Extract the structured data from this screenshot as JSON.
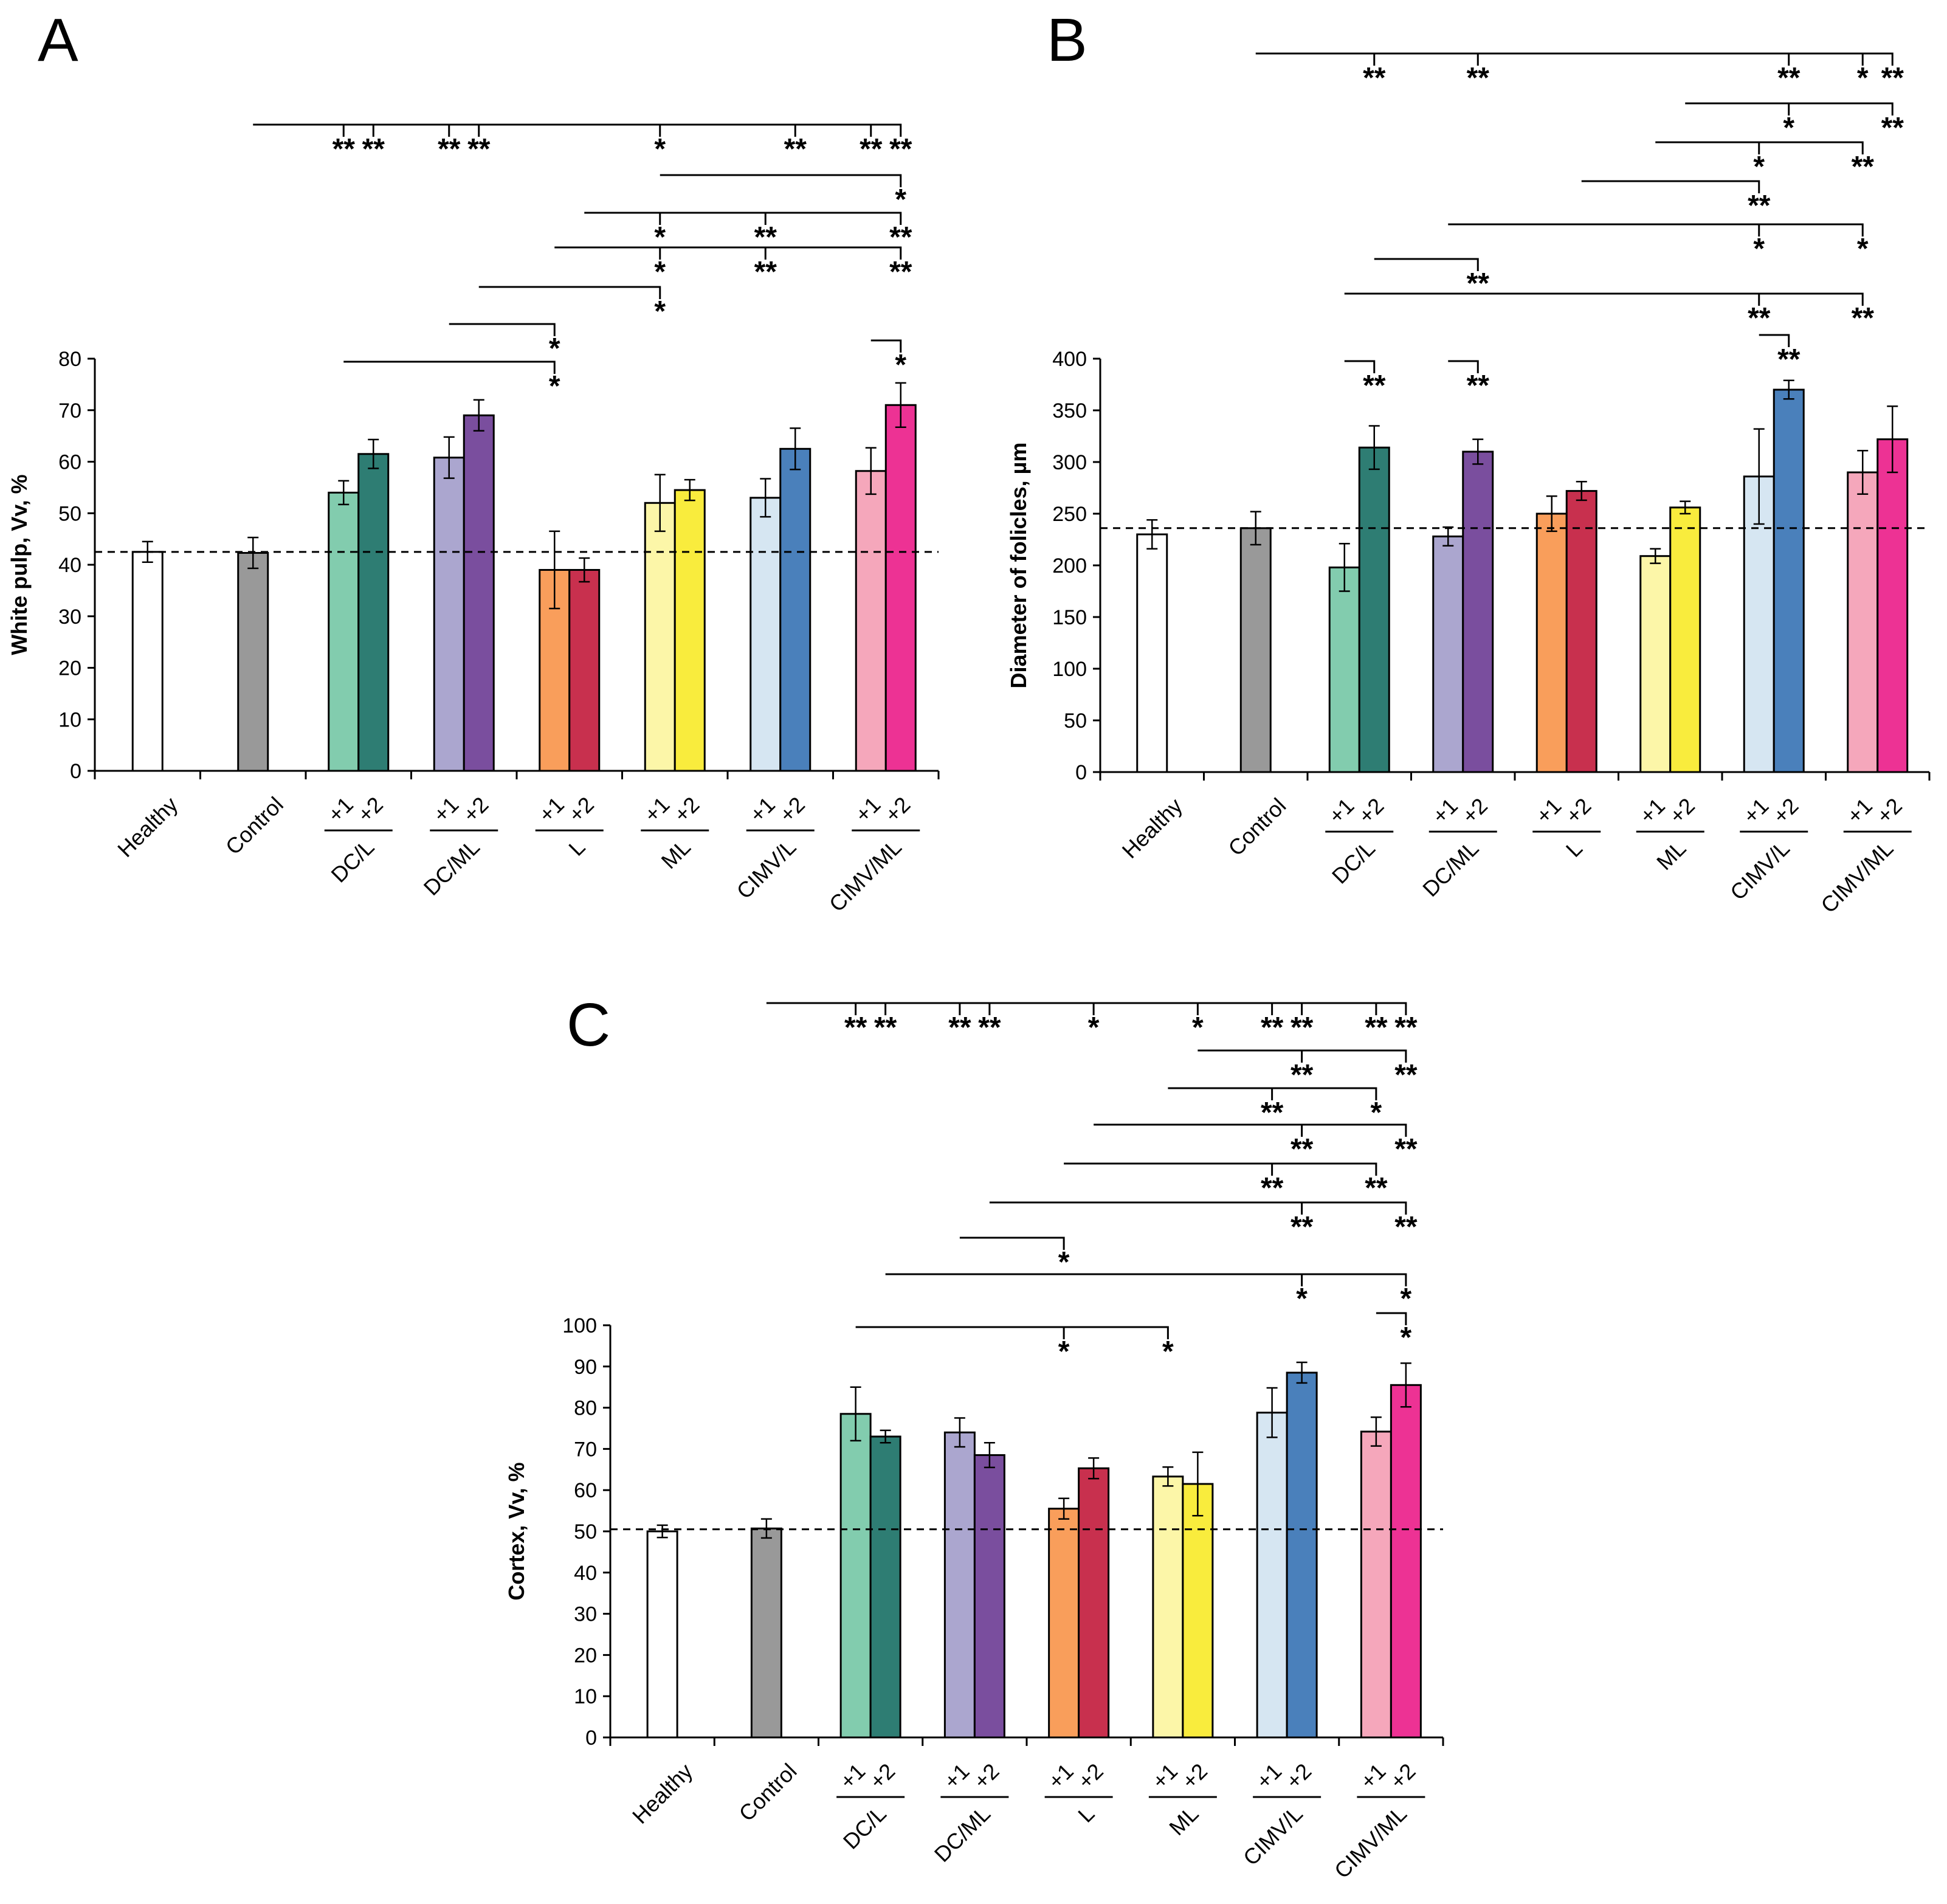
{
  "colors": {
    "Healthy": "#ffffff",
    "Control": "#999999",
    "DC/L": [
      "#82ccae",
      "#2e7d73"
    ],
    "DC/ML": [
      "#aba6cf",
      "#7a4e9e"
    ],
    "L": [
      "#f99e5b",
      "#c8304e"
    ],
    "ML": [
      "#fcf6a8",
      "#f9ec3d"
    ],
    "CIMV/L": [
      "#d6e6f2",
      "#4a80bb"
    ],
    "CIMV/ML": [
      "#f5a7bb",
      "#ed3294"
    ]
  },
  "chart_data": [
    {
      "type": "bar",
      "panel": "A",
      "ylabel": "White pulp, Vv, %",
      "ylim": [
        0,
        80
      ],
      "yticks": [
        0,
        10,
        20,
        30,
        40,
        50,
        60,
        70,
        80
      ],
      "reference_line": 42.5,
      "categories": [
        "Healthy",
        "Control",
        "DC/L",
        "DC/ML",
        "L",
        "ML",
        "CIMV/L",
        "CIMV/ML"
      ],
      "sub_labels": [
        "+1",
        "+2"
      ],
      "bars": [
        {
          "group": "Healthy",
          "value": 42.5,
          "error": 2
        },
        {
          "group": "Control",
          "value": 42.3,
          "error": 3
        },
        {
          "group": "DC/L",
          "sub": "+1",
          "value": 54,
          "error": 2.3
        },
        {
          "group": "DC/L",
          "sub": "+2",
          "value": 61.5,
          "error": 2.8
        },
        {
          "group": "DC/ML",
          "sub": "+1",
          "value": 60.8,
          "error": 4
        },
        {
          "group": "DC/ML",
          "sub": "+2",
          "value": 69,
          "error": 3
        },
        {
          "group": "L",
          "sub": "+1",
          "value": 39,
          "error": 7.5
        },
        {
          "group": "L",
          "sub": "+2",
          "value": 39,
          "error": 2.3
        },
        {
          "group": "ML",
          "sub": "+1",
          "value": 52,
          "error": 5.5
        },
        {
          "group": "ML",
          "sub": "+2",
          "value": 54.5,
          "error": 2
        },
        {
          "group": "CIMV/L",
          "sub": "+1",
          "value": 53,
          "error": 3.7
        },
        {
          "group": "CIMV/L",
          "sub": "+2",
          "value": 62.5,
          "error": 4
        },
        {
          "group": "CIMV/ML",
          "sub": "+1",
          "value": 58.2,
          "error": 4.5
        },
        {
          "group": "CIMV/ML",
          "sub": "+2",
          "value": 71,
          "error": 4.3
        }
      ],
      "brackets": [
        {
          "from": "Control",
          "to": "CIMV/ML+2",
          "marks": [
            {
              "at": "DC/L+1",
              "label": "**"
            },
            {
              "at": "DC/L+2",
              "label": "**"
            },
            {
              "at": "DC/ML+1",
              "label": "**"
            },
            {
              "at": "DC/ML+2",
              "label": "**"
            },
            {
              "at": "ML+1",
              "label": "*"
            },
            {
              "at": "CIMV/L+2",
              "label": "**"
            },
            {
              "at": "CIMV/ML+1",
              "label": "**"
            },
            {
              "at": "CIMV/ML+2",
              "label": "**"
            }
          ]
        },
        {
          "from": "ML+1",
          "to": "CIMV/ML+2",
          "marks": [
            {
              "at": "CIMV/ML+2",
              "label": "*"
            }
          ]
        },
        {
          "from": "L+2",
          "to": "CIMV/ML+2",
          "marks": [
            {
              "at": "ML+1",
              "label": "*"
            },
            {
              "at": "CIMV/L+1",
              "label": "**"
            },
            {
              "at": "CIMV/ML+2",
              "label": "**"
            }
          ]
        },
        {
          "from": "L+1",
          "to": "CIMV/ML+2",
          "marks": [
            {
              "at": "ML+1",
              "label": "*"
            },
            {
              "at": "CIMV/L+1",
              "label": "**"
            },
            {
              "at": "CIMV/ML+2",
              "label": "**"
            }
          ]
        },
        {
          "from": "DC/ML+2",
          "to": "ML+1",
          "marks": [
            {
              "at": "ML+1",
              "label": "*"
            }
          ]
        },
        {
          "from": "DC/ML+1",
          "to": "L+1",
          "marks": [
            {
              "at": "L+1",
              "label": "*"
            }
          ]
        },
        {
          "from": "DC/L+1",
          "to": "L+1",
          "marks": [
            {
              "at": "L+1",
              "label": "*"
            }
          ]
        },
        {
          "from": "CIMV/ML+1",
          "to": "CIMV/ML+2",
          "marks": [
            {
              "at": "CIMV/ML+2",
              "label": "*"
            }
          ]
        }
      ]
    },
    {
      "type": "bar",
      "panel": "B",
      "ylabel": "Diameter of folicles, µm",
      "ylim": [
        0,
        400
      ],
      "yticks": [
        0,
        50,
        100,
        150,
        200,
        250,
        300,
        350,
        400
      ],
      "reference_line": 236,
      "categories": [
        "Healthy",
        "Control",
        "DC/L",
        "DC/ML",
        "L",
        "ML",
        "CIMV/L",
        "CIMV/ML"
      ],
      "sub_labels": [
        "+1",
        "+2"
      ],
      "bars": [
        {
          "group": "Healthy",
          "value": 230,
          "error": 14
        },
        {
          "group": "Control",
          "value": 236,
          "error": 16
        },
        {
          "group": "DC/L",
          "sub": "+1",
          "value": 198,
          "error": 23
        },
        {
          "group": "DC/L",
          "sub": "+2",
          "value": 314,
          "error": 21
        },
        {
          "group": "DC/ML",
          "sub": "+1",
          "value": 228,
          "error": 9
        },
        {
          "group": "DC/ML",
          "sub": "+2",
          "value": 310,
          "error": 12
        },
        {
          "group": "L",
          "sub": "+1",
          "value": 250,
          "error": 17
        },
        {
          "group": "L",
          "sub": "+2",
          "value": 272,
          "error": 9
        },
        {
          "group": "ML",
          "sub": "+1",
          "value": 209,
          "error": 7
        },
        {
          "group": "ML",
          "sub": "+2",
          "value": 256,
          "error": 6
        },
        {
          "group": "CIMV/L",
          "sub": "+1",
          "value": 286,
          "error": 46
        },
        {
          "group": "CIMV/L",
          "sub": "+2",
          "value": 370,
          "error": 9
        },
        {
          "group": "CIMV/ML",
          "sub": "+1",
          "value": 290,
          "error": 21
        },
        {
          "group": "CIMV/ML",
          "sub": "+2",
          "value": 322,
          "error": 32
        }
      ],
      "brackets": [
        {
          "from": "Control",
          "to": "CIMV/ML+2",
          "marks": [
            {
              "at": "DC/L+2",
              "label": "**"
            },
            {
              "at": "DC/ML+2",
              "label": "**"
            },
            {
              "at": "CIMV/L+2",
              "label": "**"
            },
            {
              "at": "CIMV/ML+1",
              "label": "*"
            },
            {
              "at": "CIMV/ML+2",
              "label": "**"
            }
          ]
        },
        {
          "from": "ML+2",
          "to": "CIMV/ML+2",
          "marks": [
            {
              "at": "CIMV/L+2",
              "label": "*"
            },
            {
              "at": "CIMV/ML+2",
              "label": "**"
            }
          ]
        },
        {
          "from": "ML+1",
          "to": "CIMV/ML+1",
          "marks": [
            {
              "at": "CIMV/L+1",
              "label": "*"
            },
            {
              "at": "CIMV/ML+1",
              "label": "**"
            }
          ]
        },
        {
          "from": "L+2",
          "to": "CIMV/L+1",
          "marks": [
            {
              "at": "CIMV/L+1",
              "label": "**"
            }
          ]
        },
        {
          "from": "DC/ML+1",
          "to": "CIMV/ML+1",
          "marks": [
            {
              "at": "CIMV/L+1",
              "label": "*"
            },
            {
              "at": "CIMV/ML+1",
              "label": "*"
            }
          ]
        },
        {
          "from": "DC/L+2",
          "to": "DC/ML+2",
          "marks": [
            {
              "at": "DC/ML+2",
              "label": "**"
            }
          ]
        },
        {
          "from": "DC/L+1",
          "to": "CIMV/ML+1",
          "marks": [
            {
              "at": "CIMV/L+1",
              "label": "**"
            },
            {
              "at": "CIMV/ML+1",
              "label": "**"
            }
          ]
        },
        {
          "from": "CIMV/L+1",
          "to": "CIMV/L+2",
          "marks": [
            {
              "at": "CIMV/L+2",
              "label": "**"
            }
          ]
        },
        {
          "from": "DC/L+1",
          "to": "DC/L+2",
          "marks": [
            {
              "at": "DC/L+2",
              "label": "**"
            }
          ]
        },
        {
          "from": "DC/ML+1",
          "to": "DC/ML+2",
          "marks": [
            {
              "at": "DC/ML+2",
              "label": "**"
            }
          ]
        }
      ]
    },
    {
      "type": "bar",
      "panel": "C",
      "ylabel": "Cortex, Vv, %",
      "ylim": [
        0,
        100
      ],
      "yticks": [
        0,
        10,
        20,
        30,
        40,
        50,
        60,
        70,
        80,
        90,
        100
      ],
      "reference_line": 50.5,
      "categories": [
        "Healthy",
        "Control",
        "DC/L",
        "DC/ML",
        "L",
        "ML",
        "CIMV/L",
        "CIMV/ML"
      ],
      "sub_labels": [
        "+1",
        "+2"
      ],
      "bars": [
        {
          "group": "Healthy",
          "value": 50,
          "error": 1.5
        },
        {
          "group": "Control",
          "value": 50.7,
          "error": 2.3
        },
        {
          "group": "DC/L",
          "sub": "+1",
          "value": 78.5,
          "error": 6.5
        },
        {
          "group": "DC/L",
          "sub": "+2",
          "value": 73,
          "error": 1.5
        },
        {
          "group": "DC/ML",
          "sub": "+1",
          "value": 74,
          "error": 3.5
        },
        {
          "group": "DC/ML",
          "sub": "+2",
          "value": 68.5,
          "error": 3
        },
        {
          "group": "L",
          "sub": "+1",
          "value": 55.5,
          "error": 2.5
        },
        {
          "group": "L",
          "sub": "+2",
          "value": 65.3,
          "error": 2.5
        },
        {
          "group": "ML",
          "sub": "+1",
          "value": 63.3,
          "error": 2.3
        },
        {
          "group": "ML",
          "sub": "+2",
          "value": 61.5,
          "error": 7.7
        },
        {
          "group": "CIMV/L",
          "sub": "+1",
          "value": 78.8,
          "error": 6
        },
        {
          "group": "CIMV/L",
          "sub": "+2",
          "value": 88.5,
          "error": 2.5
        },
        {
          "group": "CIMV/ML",
          "sub": "+1",
          "value": 74.2,
          "error": 3.5
        },
        {
          "group": "CIMV/ML",
          "sub": "+2",
          "value": 85.5,
          "error": 5.3
        }
      ],
      "brackets": [
        {
          "from": "Control",
          "to": "CIMV/ML+2",
          "marks": [
            {
              "at": "DC/L+1",
              "label": "**"
            },
            {
              "at": "DC/L+2",
              "label": "**"
            },
            {
              "at": "DC/ML+1",
              "label": "**"
            },
            {
              "at": "DC/ML+2",
              "label": "**"
            },
            {
              "at": "L+2",
              "label": "*"
            },
            {
              "at": "ML+2",
              "label": "*"
            },
            {
              "at": "CIMV/L+1",
              "label": "**"
            },
            {
              "at": "CIMV/L+2",
              "label": "**"
            },
            {
              "at": "CIMV/ML+1",
              "label": "**"
            },
            {
              "at": "CIMV/ML+2",
              "label": "**"
            }
          ]
        },
        {
          "from": "ML+2",
          "to": "CIMV/ML+2",
          "marks": [
            {
              "at": "CIMV/L+2",
              "label": "**"
            },
            {
              "at": "CIMV/ML+2",
              "label": "**"
            }
          ]
        },
        {
          "from": "ML+1",
          "to": "CIMV/ML+1",
          "marks": [
            {
              "at": "CIMV/L+1",
              "label": "**"
            },
            {
              "at": "CIMV/ML+1",
              "label": "*"
            }
          ]
        },
        {
          "from": "L+2",
          "to": "CIMV/ML+2",
          "marks": [
            {
              "at": "CIMV/L+2",
              "label": "**"
            },
            {
              "at": "CIMV/ML+2",
              "label": "**"
            }
          ]
        },
        {
          "from": "L+1",
          "to": "CIMV/ML+1",
          "marks": [
            {
              "at": "CIMV/L+1",
              "label": "**"
            },
            {
              "at": "CIMV/ML+1",
              "label": "**"
            }
          ]
        },
        {
          "from": "DC/ML+2",
          "to": "CIMV/ML+2",
          "marks": [
            {
              "at": "CIMV/L+2",
              "label": "**"
            },
            {
              "at": "CIMV/ML+2",
              "label": "**"
            }
          ]
        },
        {
          "from": "DC/ML+1",
          "to": "L+1",
          "marks": [
            {
              "at": "L+1",
              "label": "*"
            }
          ]
        },
        {
          "from": "DC/L+2",
          "to": "CIMV/ML+2",
          "marks": [
            {
              "at": "CIMV/L+2",
              "label": "*"
            },
            {
              "at": "CIMV/ML+2",
              "label": "*"
            }
          ]
        },
        {
          "from": "CIMV/ML+1",
          "to": "CIMV/ML+2",
          "marks": [
            {
              "at": "CIMV/ML+2",
              "label": "*"
            }
          ]
        },
        {
          "from": "DC/L+1",
          "to": "ML+1",
          "marks": [
            {
              "at": "L+1",
              "label": "*"
            },
            {
              "at": "ML+1",
              "label": "*"
            }
          ]
        }
      ]
    }
  ]
}
